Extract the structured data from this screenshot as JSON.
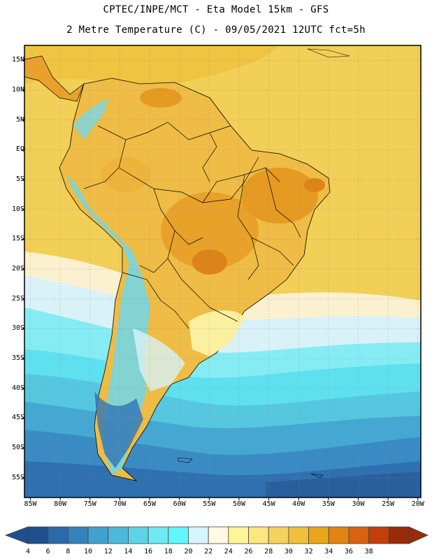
{
  "title": {
    "line1": "CPTEC/INPE/MCT -  Eta Model 15km - GFS",
    "line2": "2 Metre Temperature (C) - 09/05/2021 12UTC fct=5h"
  },
  "axes": {
    "lat_ticks": [
      {
        "label": "15N",
        "lat": 15
      },
      {
        "label": "10N",
        "lat": 10
      },
      {
        "label": "5N",
        "lat": 5
      },
      {
        "label": "EQ",
        "lat": 0
      },
      {
        "label": "5S",
        "lat": -5
      },
      {
        "label": "10S",
        "lat": -10
      },
      {
        "label": "15S",
        "lat": -15
      },
      {
        "label": "20S",
        "lat": -20
      },
      {
        "label": "25S",
        "lat": -25
      },
      {
        "label": "30S",
        "lat": -30
      },
      {
        "label": "35S",
        "lat": -35
      },
      {
        "label": "40S",
        "lat": -40
      },
      {
        "label": "45S",
        "lat": -45
      },
      {
        "label": "50S",
        "lat": -50
      },
      {
        "label": "55S",
        "lat": -55
      }
    ],
    "lon_ticks": [
      {
        "label": "85W",
        "lon": -85
      },
      {
        "label": "80W",
        "lon": -80
      },
      {
        "label": "75W",
        "lon": -75
      },
      {
        "label": "70W",
        "lon": -70
      },
      {
        "label": "65W",
        "lon": -65
      },
      {
        "label": "60W",
        "lon": -60
      },
      {
        "label": "55W",
        "lon": -55
      },
      {
        "label": "50W",
        "lon": -50
      },
      {
        "label": "45W",
        "lon": -45
      },
      {
        "label": "40W",
        "lon": -40
      },
      {
        "label": "35W",
        "lon": -35
      },
      {
        "label": "30W",
        "lon": -30
      },
      {
        "label": "25W",
        "lon": -25
      },
      {
        "label": "20W",
        "lon": -20
      }
    ],
    "lon_range": [
      -86,
      -19.5
    ],
    "lat_range": [
      -58.3,
      17.5
    ]
  },
  "colorbar": {
    "labels": [
      "4",
      "6",
      "8",
      "10",
      "12",
      "14",
      "16",
      "18",
      "20",
      "22",
      "24",
      "26",
      "28",
      "30",
      "32",
      "34",
      "36",
      "38"
    ],
    "colors": [
      "#1e4f8f",
      "#2a6aa8",
      "#3583bd",
      "#40a2cc",
      "#4db9da",
      "#5dd3e6",
      "#6eeaf3",
      "#5ff7fb",
      "#d6f4fb",
      "#fff8e4",
      "#fff596",
      "#fbe680",
      "#f5d25a",
      "#efc039",
      "#e8a718",
      "#e28412",
      "#d8620e",
      "#c43e0a",
      "#9a2b08"
    ]
  }
}
